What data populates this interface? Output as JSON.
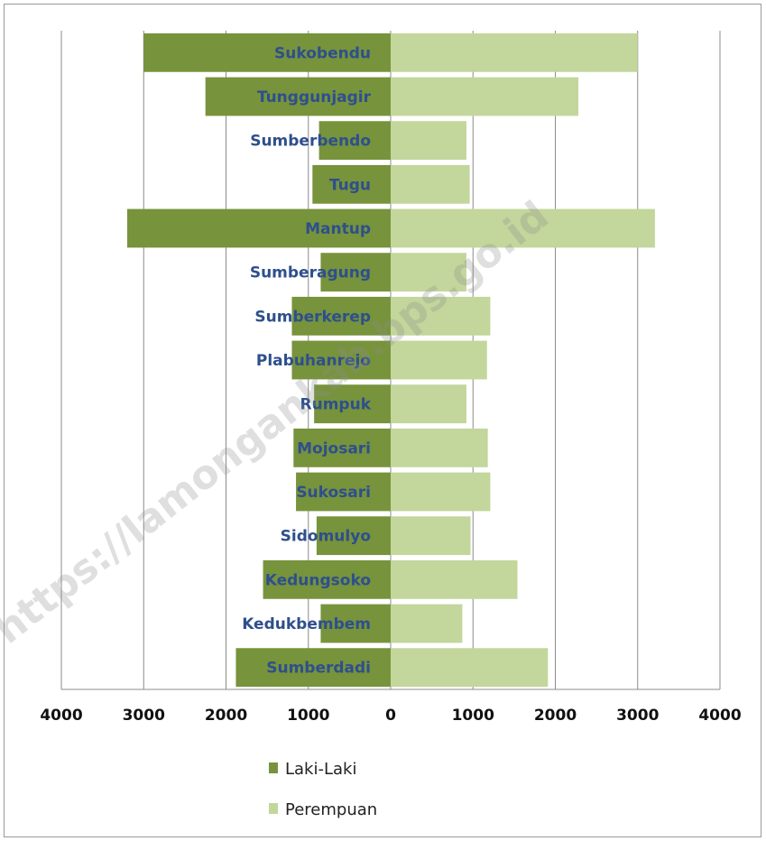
{
  "watermark": "https://lamongankab.bps.go.id",
  "chart_data": {
    "type": "bar",
    "orientation": "horizontal",
    "layout": "population-pyramid",
    "categories": [
      "Sukobendu",
      "Tunggunjagir",
      "Sumberbendo",
      "Tugu",
      "Mantup",
      "Sumberagung",
      "Sumberkerep",
      "Plabuhanrejo",
      "Rumpuk",
      "Mojosari",
      "Sukosari",
      "Sidomulyo",
      "Kedungsoko",
      "Kedukbembem",
      "Sumberdadi"
    ],
    "series": [
      {
        "name": "Laki-Laki",
        "color": "#77933c",
        "side": "left",
        "values": [
          3000,
          2250,
          870,
          950,
          3200,
          850,
          1200,
          1200,
          930,
          1180,
          1150,
          900,
          1550,
          850,
          1880
        ]
      },
      {
        "name": "Perempuan",
        "color": "#c3d69b",
        "side": "right",
        "values": [
          3000,
          2280,
          920,
          960,
          3210,
          920,
          1210,
          1170,
          920,
          1180,
          1210,
          970,
          1540,
          870,
          1910
        ]
      }
    ],
    "xlim": [
      -4000,
      4000
    ],
    "xticks": [
      -4000,
      -3000,
      -2000,
      -1000,
      0,
      1000,
      2000,
      3000,
      4000
    ],
    "xtick_labels": [
      "4000",
      "3000",
      "2000",
      "1000",
      "0",
      "1000",
      "2000",
      "3000",
      "4000"
    ],
    "grid": "vertical",
    "legend": "bottom-center",
    "title": "",
    "xlabel": "",
    "ylabel": ""
  }
}
